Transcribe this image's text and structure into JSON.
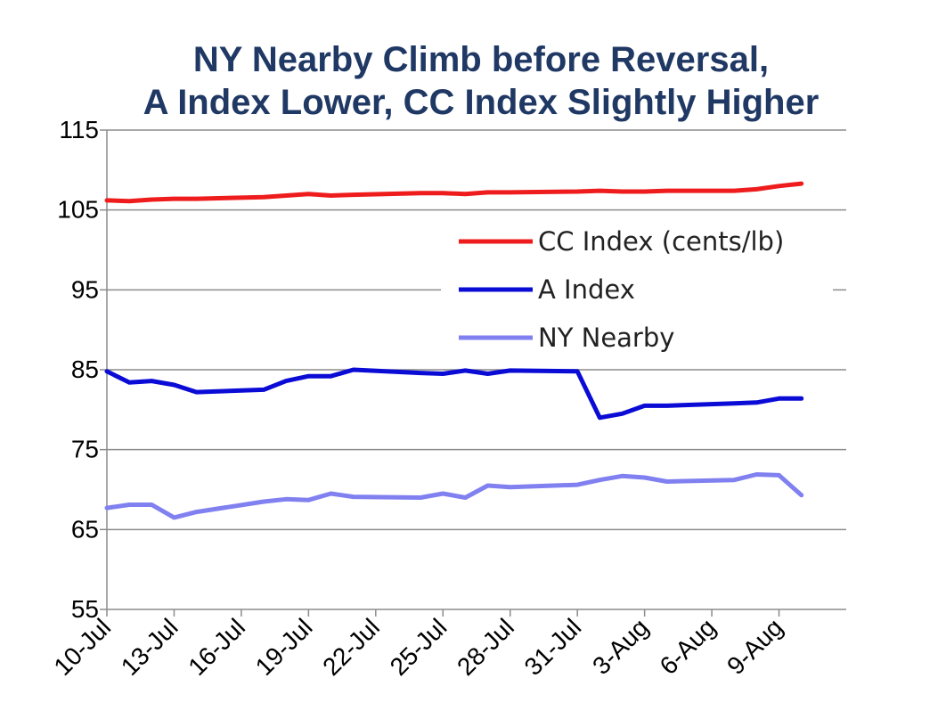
{
  "chart_data": {
    "type": "line",
    "title_lines": [
      "NY Nearby Climb before Reversal,",
      "A Index Lower, CC Index Slightly Higher"
    ],
    "xlabel": "",
    "ylabel": "",
    "ylim": [
      55,
      115
    ],
    "yticks": [
      55,
      65,
      75,
      85,
      95,
      105,
      115
    ],
    "xlim": [
      "2012-07-10",
      "2012-08-12"
    ],
    "x_tick_labels": [
      "10-Jul",
      "13-Jul",
      "16-Jul",
      "19-Jul",
      "22-Jul",
      "25-Jul",
      "28-Jul",
      "31-Jul",
      "3-Aug",
      "6-Aug",
      "9-Aug"
    ],
    "x_tick_dates": [
      "2012-07-10",
      "2012-07-13",
      "2012-07-16",
      "2012-07-19",
      "2012-07-22",
      "2012-07-25",
      "2012-07-28",
      "2012-07-31",
      "2012-08-03",
      "2012-08-06",
      "2012-08-09"
    ],
    "grid": "horizontal",
    "legend_position": "upper-right",
    "x": [
      "2012-07-10",
      "2012-07-11",
      "2012-07-12",
      "2012-07-13",
      "2012-07-14",
      "2012-07-17",
      "2012-07-18",
      "2012-07-19",
      "2012-07-20",
      "2012-07-21",
      "2012-07-24",
      "2012-07-25",
      "2012-07-26",
      "2012-07-27",
      "2012-07-28",
      "2012-07-31",
      "2012-08-01",
      "2012-08-02",
      "2012-08-03",
      "2012-08-04",
      "2012-08-07",
      "2012-08-08",
      "2012-08-09",
      "2012-08-10"
    ],
    "series": [
      {
        "name": "CC Index (cents/lb)",
        "color": "#ee1c1c",
        "values": [
          106.2,
          106.1,
          106.3,
          106.4,
          106.4,
          106.6,
          106.8,
          107.0,
          106.8,
          106.9,
          107.1,
          107.1,
          107.0,
          107.2,
          107.2,
          107.3,
          107.4,
          107.3,
          107.3,
          107.4,
          107.4,
          107.6,
          108.0,
          108.3
        ]
      },
      {
        "name": "A Index",
        "color": "#0b0bd6",
        "values": [
          84.8,
          83.4,
          83.6,
          83.1,
          82.2,
          82.5,
          83.6,
          84.2,
          84.2,
          85.0,
          84.6,
          84.5,
          84.9,
          84.5,
          84.9,
          84.8,
          79.0,
          79.5,
          80.5,
          80.5,
          80.8,
          80.9,
          81.4,
          81.4
        ]
      },
      {
        "name": "NY Nearby",
        "color": "#8080f0",
        "values": [
          67.7,
          68.1,
          68.1,
          66.5,
          67.2,
          68.5,
          68.8,
          68.7,
          69.5,
          69.1,
          69.0,
          69.5,
          69.0,
          70.5,
          70.3,
          70.6,
          71.2,
          71.7,
          71.5,
          71.0,
          71.2,
          71.9,
          71.8,
          69.3
        ]
      }
    ]
  }
}
